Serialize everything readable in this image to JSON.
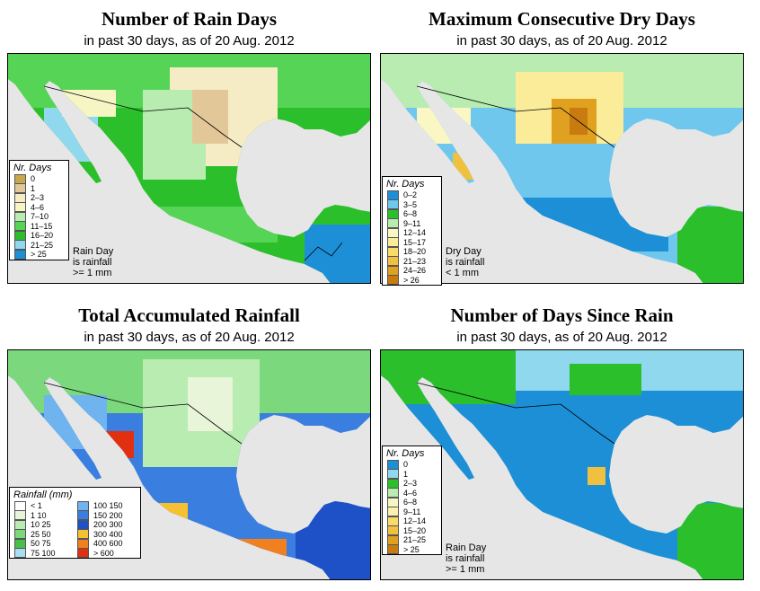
{
  "colors": {
    "land_gray": "#e6e6e6",
    "border": "#000000"
  },
  "panels": [
    {
      "title": "Number of Rain Days",
      "subtitle": "in past 30 days, as of  20 Aug. 2012",
      "legend_title": "Nr. Days",
      "legend": [
        {
          "label": "0",
          "color": "#c9a84c"
        },
        {
          "label": "1",
          "color": "#e2c898"
        },
        {
          "label": "2–3",
          "color": "#f5ecc5"
        },
        {
          "label": "4–6",
          "color": "#f7f5c4"
        },
        {
          "label": "7–10",
          "color": "#b8ecb0"
        },
        {
          "label": "11–15",
          "color": "#55d455"
        },
        {
          "label": "16–20",
          "color": "#2bc02b"
        },
        {
          "label": "21–25",
          "color": "#8fd8ee"
        },
        {
          "label": "> 25",
          "color": "#1d8fd6"
        }
      ],
      "note": [
        "Rain Day",
        "is rainfall",
        ">= 1 mm"
      ]
    },
    {
      "title": "Maximum Consecutive Dry Days",
      "subtitle": "in past 30 days, as of  20 Aug. 2012",
      "legend_title": "Nr. Days",
      "legend": [
        {
          "label": "0–2",
          "color": "#1d8fd6"
        },
        {
          "label": "3–5",
          "color": "#6fc7ee"
        },
        {
          "label": "6–8",
          "color": "#2bc02b"
        },
        {
          "label": "9–11",
          "color": "#b8ecb0"
        },
        {
          "label": "12–14",
          "color": "#fbf7c4"
        },
        {
          "label": "15–17",
          "color": "#fbec9a"
        },
        {
          "label": "18–20",
          "color": "#f7dc6a"
        },
        {
          "label": "21–23",
          "color": "#f0c040"
        },
        {
          "label": "24–26",
          "color": "#e0a020"
        },
        {
          "label": "> 26",
          "color": "#c87c10"
        }
      ],
      "note": [
        "Dry Day",
        "is rainfall",
        "< 1 mm"
      ]
    },
    {
      "title": "Total Accumulated Rainfall",
      "subtitle": "in past 30 days, as of  20 Aug. 2012",
      "legend_title": "Rainfall (mm)",
      "legend_left": [
        {
          "label": "< 1",
          "color": "#ffffff"
        },
        {
          "label": "1   10",
          "color": "#e8f5d8"
        },
        {
          "label": "10   25",
          "color": "#b8ecb0"
        },
        {
          "label": "25   50",
          "color": "#7cd87c"
        },
        {
          "label": "50   75",
          "color": "#48c048"
        },
        {
          "label": "75  100",
          "color": "#a8ddf2"
        }
      ],
      "legend_right": [
        {
          "label": "100  150",
          "color": "#6fb4ee"
        },
        {
          "label": "150  200",
          "color": "#3a7ee0"
        },
        {
          "label": "200  300",
          "color": "#1e50c8"
        },
        {
          "label": "300  400",
          "color": "#f7c030"
        },
        {
          "label": "400  600",
          "color": "#f08020"
        },
        {
          "label": "> 600",
          "color": "#e03010"
        }
      ]
    },
    {
      "title": "Number of Days Since Rain",
      "subtitle": "in past 30 days, as of  20 Aug. 2012",
      "legend_title": "Nr. Days",
      "legend": [
        {
          "label": "0",
          "color": "#1d8fd6"
        },
        {
          "label": "1",
          "color": "#8fd8ee"
        },
        {
          "label": "2–3",
          "color": "#2bc02b"
        },
        {
          "label": "4–6",
          "color": "#b8ecb0"
        },
        {
          "label": "6–8",
          "color": "#f7f5c4"
        },
        {
          "label": "9–11",
          "color": "#fbf0b0"
        },
        {
          "label": "12–14",
          "color": "#f7dc6a"
        },
        {
          "label": "15–20",
          "color": "#f0c040"
        },
        {
          "label": "21–25",
          "color": "#e0a020"
        },
        {
          "label": "> 25",
          "color": "#c87c10"
        }
      ],
      "note": [
        "Rain Day",
        "is rainfall",
        ">= 1 mm"
      ]
    }
  ]
}
